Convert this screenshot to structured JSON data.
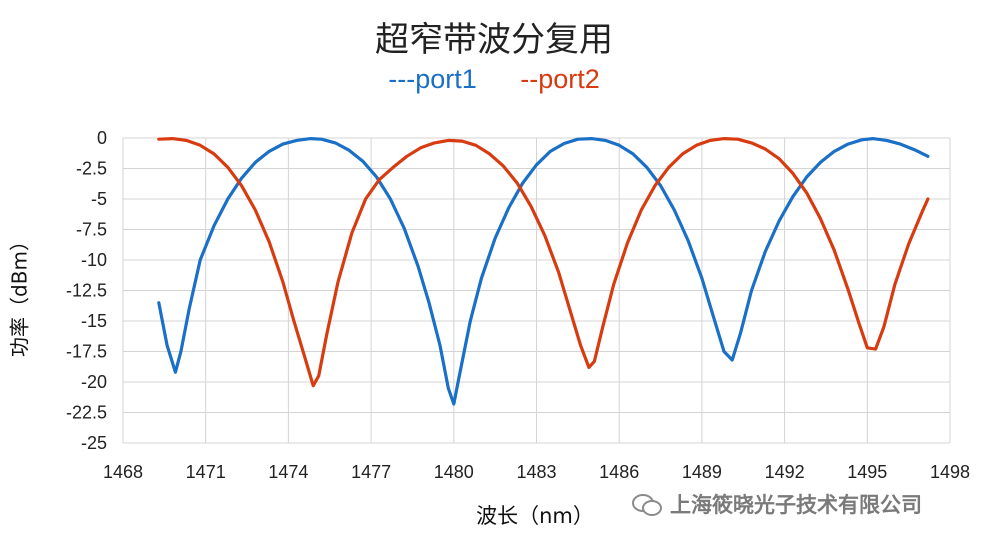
{
  "chart_data": {
    "type": "line",
    "title": "超窄带波分复用",
    "legend": [
      "---port1",
      "--port2"
    ],
    "xlabel": "波长（nm）",
    "ylabel": "功率（dBm）",
    "xlim": [
      1468,
      1498
    ],
    "ylim": [
      -25,
      0
    ],
    "xticks": [
      1468,
      1471,
      1474,
      1477,
      1480,
      1483,
      1486,
      1489,
      1492,
      1495,
      1498
    ],
    "yticks": [
      0,
      -2.5,
      -5,
      -7.5,
      -10,
      -12.5,
      -15,
      -17.5,
      -20,
      -22.5,
      -25
    ],
    "xtick_labels": [
      "1468",
      "1471",
      "1474",
      "1477",
      "1480",
      "1483",
      "1486",
      "1489",
      "1492",
      "1495",
      "1498"
    ],
    "ytick_labels": [
      "0",
      "-2.5",
      "-5",
      "-7.5",
      "-10",
      "-12.5",
      "-15",
      "-17.5",
      "-20",
      "-22.5",
      "-25"
    ],
    "grid": true,
    "legend_position": "top-center",
    "series": [
      {
        "name": "---port1",
        "color": "#1a6fc6",
        "x": [
          1469.3,
          1469.6,
          1469.9,
          1470.1,
          1470.4,
          1470.8,
          1471.3,
          1471.8,
          1472.3,
          1472.8,
          1473.3,
          1473.8,
          1474.3,
          1474.8,
          1475.2,
          1475.7,
          1476.2,
          1476.7,
          1477.2,
          1477.7,
          1478.2,
          1478.7,
          1479.1,
          1479.5,
          1479.8,
          1480.0,
          1480.2,
          1480.6,
          1481.0,
          1481.5,
          1482.0,
          1482.5,
          1483.0,
          1483.5,
          1484.0,
          1484.5,
          1485.0,
          1485.5,
          1486.0,
          1486.5,
          1487.0,
          1487.5,
          1488.0,
          1488.5,
          1489.0,
          1489.4,
          1489.8,
          1490.1,
          1490.4,
          1490.8,
          1491.3,
          1491.8,
          1492.3,
          1492.8,
          1493.3,
          1493.8,
          1494.3,
          1494.8,
          1495.2,
          1495.7,
          1496.2,
          1496.7,
          1497.2
        ],
        "y": [
          -13.5,
          -17,
          -19.2,
          -17.5,
          -14,
          -10,
          -7.2,
          -5,
          -3.3,
          -2.0,
          -1.1,
          -0.5,
          -0.2,
          -0.05,
          -0.1,
          -0.4,
          -1.0,
          -1.9,
          -3.2,
          -5.0,
          -7.4,
          -10.5,
          -13.5,
          -17,
          -20.5,
          -21.8,
          -19.5,
          -15,
          -11.5,
          -8.2,
          -5.7,
          -3.7,
          -2.2,
          -1.1,
          -0.45,
          -0.1,
          -0.05,
          -0.2,
          -0.6,
          -1.3,
          -2.4,
          -3.9,
          -5.9,
          -8.4,
          -11.5,
          -14.5,
          -17.5,
          -18.2,
          -16,
          -12.5,
          -9.3,
          -6.8,
          -4.8,
          -3.2,
          -2.0,
          -1.1,
          -0.5,
          -0.15,
          -0.05,
          -0.2,
          -0.5,
          -0.95,
          -1.5
        ]
      },
      {
        "name": "--port2",
        "color": "#d83b0f",
        "x": [
          1469.3,
          1469.8,
          1470.3,
          1470.8,
          1471.3,
          1471.8,
          1472.3,
          1472.8,
          1473.3,
          1473.8,
          1474.2,
          1474.6,
          1474.9,
          1475.1,
          1475.4,
          1475.8,
          1476.3,
          1476.8,
          1477.3,
          1477.8,
          1478.3,
          1478.8,
          1479.3,
          1479.8,
          1480.3,
          1480.8,
          1481.3,
          1481.8,
          1482.3,
          1482.8,
          1483.3,
          1483.8,
          1484.2,
          1484.6,
          1484.9,
          1485.1,
          1485.4,
          1485.8,
          1486.3,
          1486.8,
          1487.3,
          1487.8,
          1488.3,
          1488.8,
          1489.3,
          1489.8,
          1490.3,
          1490.8,
          1491.3,
          1491.8,
          1492.3,
          1492.8,
          1493.3,
          1493.8,
          1494.3,
          1494.7,
          1495.0,
          1495.3,
          1495.6,
          1496.0,
          1496.5,
          1497.0,
          1497.2
        ],
        "y": [
          -0.1,
          -0.05,
          -0.2,
          -0.6,
          -1.3,
          -2.4,
          -3.9,
          -5.9,
          -8.5,
          -11.8,
          -15,
          -18,
          -20.3,
          -19.5,
          -16,
          -11.8,
          -7.8,
          -5.0,
          -3.4,
          -2.4,
          -1.5,
          -0.8,
          -0.4,
          -0.2,
          -0.25,
          -0.6,
          -1.3,
          -2.3,
          -3.7,
          -5.6,
          -8.0,
          -11.0,
          -14,
          -17,
          -18.8,
          -18.3,
          -15.5,
          -12,
          -8.6,
          -5.9,
          -3.9,
          -2.4,
          -1.3,
          -0.6,
          -0.2,
          -0.05,
          -0.1,
          -0.4,
          -0.9,
          -1.7,
          -2.9,
          -4.5,
          -6.6,
          -9.2,
          -12.4,
          -15.2,
          -17.2,
          -17.3,
          -15.5,
          -12,
          -8.7,
          -6.0,
          -5.0
        ]
      }
    ]
  },
  "watermark": {
    "icon": "wechat-icon",
    "text": "上海筱晓光子技术有限公司"
  }
}
